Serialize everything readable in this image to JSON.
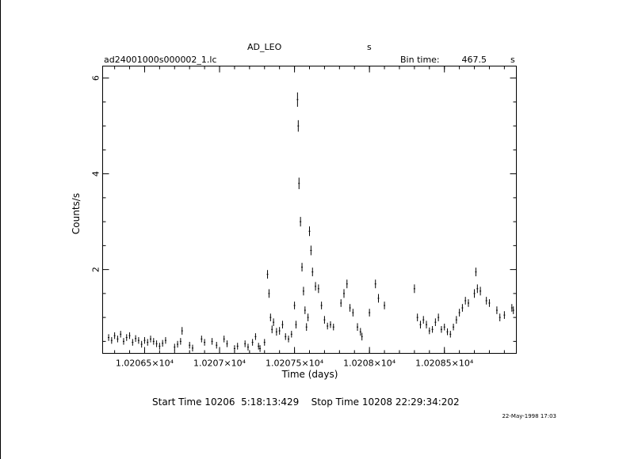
{
  "header": {
    "object": "AD_LEO",
    "object_unit": "s",
    "file": "ad24001000s000002_1.lc",
    "bin_label": "Bin time:",
    "bin_value": "467.5",
    "bin_unit": "s"
  },
  "footer": {
    "times": "Start Time 10206  5:18:13:429    Stop Time 10208 22:29:34:202",
    "date": "22-May-1998 17:03"
  },
  "chart_data": {
    "type": "scatter",
    "xlabel": "Time (days)",
    "ylabel": "Counts/s",
    "xlim": [
      10206.22,
      10208.98
    ],
    "ylim": [
      0.25,
      6.25
    ],
    "x_ticks": [
      10206.5,
      10207.0,
      10207.5,
      10208.0,
      10208.5
    ],
    "x_tick_labels": [
      "1.02065×10⁴",
      "1.0207×10⁴",
      "1.02075×10⁴",
      "1.0208×10⁴",
      "1.02085×10⁴"
    ],
    "y_ticks": [
      2,
      4,
      6
    ],
    "y_tick_labels": [
      "2",
      "4",
      "6"
    ],
    "grid": false,
    "marker": "vertical error bar",
    "color": "#000000",
    "points": [
      [
        10206.26,
        0.58,
        0.07
      ],
      [
        10206.28,
        0.52,
        0.07
      ],
      [
        10206.3,
        0.62,
        0.07
      ],
      [
        10206.32,
        0.55,
        0.07
      ],
      [
        10206.34,
        0.65,
        0.07
      ],
      [
        10206.36,
        0.5,
        0.07
      ],
      [
        10206.38,
        0.58,
        0.07
      ],
      [
        10206.4,
        0.62,
        0.07
      ],
      [
        10206.42,
        0.48,
        0.07
      ],
      [
        10206.44,
        0.56,
        0.07
      ],
      [
        10206.46,
        0.52,
        0.07
      ],
      [
        10206.48,
        0.44,
        0.07
      ],
      [
        10206.5,
        0.52,
        0.07
      ],
      [
        10206.52,
        0.48,
        0.07
      ],
      [
        10206.54,
        0.55,
        0.07
      ],
      [
        10206.56,
        0.5,
        0.07
      ],
      [
        10206.58,
        0.45,
        0.07
      ],
      [
        10206.6,
        0.4,
        0.07
      ],
      [
        10206.62,
        0.46,
        0.07
      ],
      [
        10206.64,
        0.52,
        0.07
      ],
      [
        10206.7,
        0.38,
        0.07
      ],
      [
        10206.72,
        0.44,
        0.07
      ],
      [
        10206.74,
        0.5,
        0.07
      ],
      [
        10206.75,
        0.72,
        0.08
      ],
      [
        10206.8,
        0.42,
        0.07
      ],
      [
        10206.82,
        0.36,
        0.07
      ],
      [
        10206.88,
        0.55,
        0.07
      ],
      [
        10206.9,
        0.48,
        0.07
      ],
      [
        10206.95,
        0.5,
        0.07
      ],
      [
        10206.98,
        0.42,
        0.07
      ],
      [
        10207.03,
        0.55,
        0.07
      ],
      [
        10207.05,
        0.45,
        0.07
      ],
      [
        10207.1,
        0.35,
        0.07
      ],
      [
        10207.12,
        0.4,
        0.07
      ],
      [
        10207.17,
        0.45,
        0.07
      ],
      [
        10207.19,
        0.38,
        0.07
      ],
      [
        10207.22,
        0.48,
        0.07
      ],
      [
        10207.24,
        0.6,
        0.07
      ],
      [
        10207.26,
        0.4,
        0.07
      ],
      [
        10207.27,
        0.35,
        0.07
      ],
      [
        10207.3,
        0.48,
        0.07
      ],
      [
        10207.32,
        1.9,
        0.09
      ],
      [
        10207.33,
        1.5,
        0.09
      ],
      [
        10207.34,
        1.0,
        0.08
      ],
      [
        10207.35,
        0.75,
        0.08
      ],
      [
        10207.36,
        0.9,
        0.08
      ],
      [
        10207.38,
        0.7,
        0.08
      ],
      [
        10207.4,
        0.72,
        0.08
      ],
      [
        10207.42,
        0.85,
        0.08
      ],
      [
        10207.44,
        0.6,
        0.07
      ],
      [
        10207.46,
        0.55,
        0.07
      ],
      [
        10207.48,
        0.65,
        0.07
      ],
      [
        10207.5,
        1.25,
        0.08
      ],
      [
        10207.51,
        0.85,
        0.08
      ],
      [
        10207.52,
        5.55,
        0.15
      ],
      [
        10207.525,
        5.0,
        0.12
      ],
      [
        10207.53,
        3.8,
        0.12
      ],
      [
        10207.54,
        3.0,
        0.1
      ],
      [
        10207.55,
        2.05,
        0.09
      ],
      [
        10207.56,
        1.55,
        0.09
      ],
      [
        10207.57,
        1.15,
        0.08
      ],
      [
        10207.58,
        0.8,
        0.08
      ],
      [
        10207.59,
        1.0,
        0.08
      ],
      [
        10207.6,
        2.8,
        0.1
      ],
      [
        10207.61,
        2.4,
        0.1
      ],
      [
        10207.62,
        1.95,
        0.09
      ],
      [
        10207.64,
        1.65,
        0.09
      ],
      [
        10207.66,
        1.6,
        0.09
      ],
      [
        10207.68,
        1.25,
        0.08
      ],
      [
        10207.7,
        0.95,
        0.08
      ],
      [
        10207.72,
        0.82,
        0.07
      ],
      [
        10207.74,
        0.85,
        0.07
      ],
      [
        10207.76,
        0.8,
        0.07
      ],
      [
        10207.81,
        1.3,
        0.08
      ],
      [
        10207.83,
        1.5,
        0.09
      ],
      [
        10207.85,
        1.7,
        0.09
      ],
      [
        10207.87,
        1.2,
        0.08
      ],
      [
        10207.89,
        1.1,
        0.08
      ],
      [
        10207.92,
        0.8,
        0.08
      ],
      [
        10207.94,
        0.7,
        0.08
      ],
      [
        10207.95,
        0.6,
        0.08
      ],
      [
        10208.0,
        1.1,
        0.08
      ],
      [
        10208.04,
        1.7,
        0.09
      ],
      [
        10208.06,
        1.4,
        0.09
      ],
      [
        10208.1,
        1.25,
        0.08
      ],
      [
        10208.3,
        1.6,
        0.09
      ],
      [
        10208.32,
        1.0,
        0.08
      ],
      [
        10208.34,
        0.85,
        0.08
      ],
      [
        10208.36,
        0.95,
        0.08
      ],
      [
        10208.38,
        0.85,
        0.08
      ],
      [
        10208.4,
        0.72,
        0.07
      ],
      [
        10208.42,
        0.75,
        0.07
      ],
      [
        10208.44,
        0.9,
        0.08
      ],
      [
        10208.46,
        1.0,
        0.08
      ],
      [
        10208.48,
        0.75,
        0.07
      ],
      [
        10208.5,
        0.8,
        0.07
      ],
      [
        10208.52,
        0.7,
        0.07
      ],
      [
        10208.54,
        0.65,
        0.07
      ],
      [
        10208.56,
        0.8,
        0.07
      ],
      [
        10208.58,
        0.95,
        0.08
      ],
      [
        10208.6,
        1.1,
        0.08
      ],
      [
        10208.62,
        1.2,
        0.08
      ],
      [
        10208.64,
        1.35,
        0.08
      ],
      [
        10208.66,
        1.3,
        0.08
      ],
      [
        10208.7,
        1.5,
        0.09
      ],
      [
        10208.71,
        1.95,
        0.09
      ],
      [
        10208.72,
        1.6,
        0.09
      ],
      [
        10208.74,
        1.55,
        0.09
      ],
      [
        10208.78,
        1.35,
        0.08
      ],
      [
        10208.8,
        1.3,
        0.08
      ],
      [
        10208.85,
        1.15,
        0.08
      ],
      [
        10208.87,
        1.0,
        0.08
      ],
      [
        10208.9,
        1.05,
        0.08
      ],
      [
        10208.95,
        1.2,
        0.08
      ],
      [
        10208.96,
        1.15,
        0.08
      ]
    ]
  }
}
